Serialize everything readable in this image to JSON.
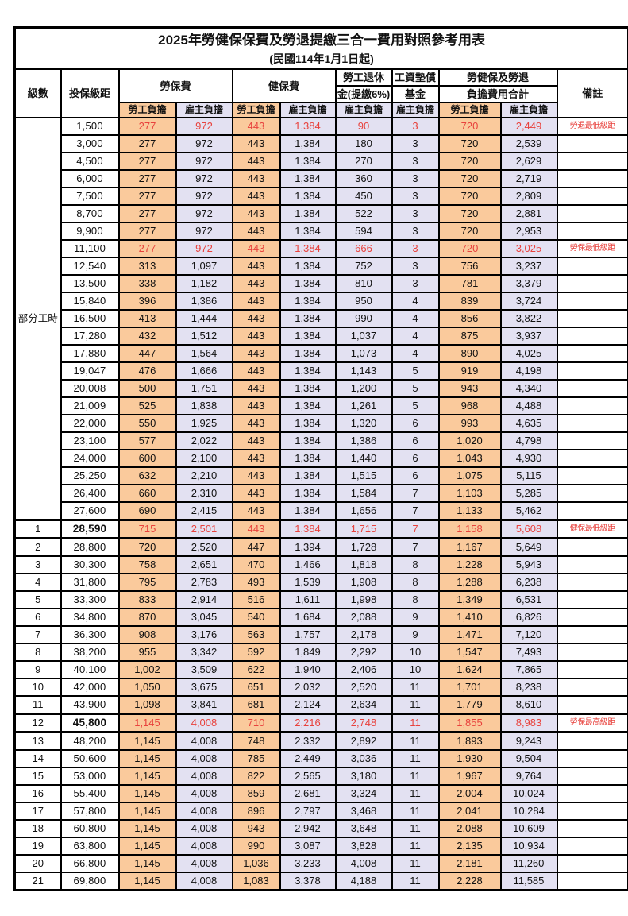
{
  "title": "2025年勞健保保費及勞退提繳三合一費用對照參考用表",
  "subtitle": "(民國114年1月1日起)",
  "colors": {
    "employee_column_bg": "#FACA9C",
    "employer_column_bg": "#E3E1F2",
    "highlight_text": "#E8423D",
    "border": "#000000"
  },
  "header": {
    "level": "級數",
    "salary": "投保級距",
    "labor": "勞保費",
    "health": "健保費",
    "pension_line1": "勞工退休",
    "pension_line2": "金(提繳6%)",
    "wage_fund_line1": "工資墊償",
    "wage_fund_line2": "基金",
    "total_line1": "勞健保及勞退",
    "total_line2": "負擔費用合計",
    "remark": "備註",
    "employee": "勞工負擔",
    "employer": "雇主負擔"
  },
  "part_time_label": "部分工時",
  "part_time_rowspan": 23,
  "rows": [
    {
      "lv": null,
      "salary": "1,500",
      "v": [
        "277",
        "972",
        "443",
        "1,384",
        "90",
        "3",
        "720",
        "2,449"
      ],
      "note": "勞退最低級距",
      "red": true,
      "thick": false
    },
    {
      "lv": null,
      "salary": "3,000",
      "v": [
        "277",
        "972",
        "443",
        "1,384",
        "180",
        "3",
        "720",
        "2,539"
      ],
      "note": "",
      "red": false,
      "thick": false
    },
    {
      "lv": null,
      "salary": "4,500",
      "v": [
        "277",
        "972",
        "443",
        "1,384",
        "270",
        "3",
        "720",
        "2,629"
      ],
      "note": "",
      "red": false,
      "thick": false
    },
    {
      "lv": null,
      "salary": "6,000",
      "v": [
        "277",
        "972",
        "443",
        "1,384",
        "360",
        "3",
        "720",
        "2,719"
      ],
      "note": "",
      "red": false,
      "thick": false
    },
    {
      "lv": null,
      "salary": "7,500",
      "v": [
        "277",
        "972",
        "443",
        "1,384",
        "450",
        "3",
        "720",
        "2,809"
      ],
      "note": "",
      "red": false,
      "thick": false
    },
    {
      "lv": null,
      "salary": "8,700",
      "v": [
        "277",
        "972",
        "443",
        "1,384",
        "522",
        "3",
        "720",
        "2,881"
      ],
      "note": "",
      "red": false,
      "thick": false
    },
    {
      "lv": null,
      "salary": "9,900",
      "v": [
        "277",
        "972",
        "443",
        "1,384",
        "594",
        "3",
        "720",
        "2,953"
      ],
      "note": "",
      "red": false,
      "thick": false
    },
    {
      "lv": null,
      "salary": "11,100",
      "v": [
        "277",
        "972",
        "443",
        "1,384",
        "666",
        "3",
        "720",
        "3,025"
      ],
      "note": "勞保最低級距",
      "red": true,
      "thick": false
    },
    {
      "lv": null,
      "salary": "12,540",
      "v": [
        "313",
        "1,097",
        "443",
        "1,384",
        "752",
        "3",
        "756",
        "3,237"
      ],
      "note": "",
      "red": false,
      "thick": false
    },
    {
      "lv": null,
      "salary": "13,500",
      "v": [
        "338",
        "1,182",
        "443",
        "1,384",
        "810",
        "3",
        "781",
        "3,379"
      ],
      "note": "",
      "red": false,
      "thick": false
    },
    {
      "lv": null,
      "salary": "15,840",
      "v": [
        "396",
        "1,386",
        "443",
        "1,384",
        "950",
        "4",
        "839",
        "3,724"
      ],
      "note": "",
      "red": false,
      "thick": false
    },
    {
      "lv": null,
      "salary": "16,500",
      "v": [
        "413",
        "1,444",
        "443",
        "1,384",
        "990",
        "4",
        "856",
        "3,822"
      ],
      "note": "",
      "red": false,
      "thick": false
    },
    {
      "lv": null,
      "salary": "17,280",
      "v": [
        "432",
        "1,512",
        "443",
        "1,384",
        "1,037",
        "4",
        "875",
        "3,937"
      ],
      "note": "",
      "red": false,
      "thick": false
    },
    {
      "lv": null,
      "salary": "17,880",
      "v": [
        "447",
        "1,564",
        "443",
        "1,384",
        "1,073",
        "4",
        "890",
        "4,025"
      ],
      "note": "",
      "red": false,
      "thick": false
    },
    {
      "lv": null,
      "salary": "19,047",
      "v": [
        "476",
        "1,666",
        "443",
        "1,384",
        "1,143",
        "5",
        "919",
        "4,198"
      ],
      "note": "",
      "red": false,
      "thick": false
    },
    {
      "lv": null,
      "salary": "20,008",
      "v": [
        "500",
        "1,751",
        "443",
        "1,384",
        "1,200",
        "5",
        "943",
        "4,340"
      ],
      "note": "",
      "red": false,
      "thick": false
    },
    {
      "lv": null,
      "salary": "21,009",
      "v": [
        "525",
        "1,838",
        "443",
        "1,384",
        "1,261",
        "5",
        "968",
        "4,488"
      ],
      "note": "",
      "red": false,
      "thick": false
    },
    {
      "lv": null,
      "salary": "22,000",
      "v": [
        "550",
        "1,925",
        "443",
        "1,384",
        "1,320",
        "6",
        "993",
        "4,635"
      ],
      "note": "",
      "red": false,
      "thick": false
    },
    {
      "lv": null,
      "salary": "23,100",
      "v": [
        "577",
        "2,022",
        "443",
        "1,384",
        "1,386",
        "6",
        "1,020",
        "4,798"
      ],
      "note": "",
      "red": false,
      "thick": false
    },
    {
      "lv": null,
      "salary": "24,000",
      "v": [
        "600",
        "2,100",
        "443",
        "1,384",
        "1,440",
        "6",
        "1,043",
        "4,930"
      ],
      "note": "",
      "red": false,
      "thick": false
    },
    {
      "lv": null,
      "salary": "25,250",
      "v": [
        "632",
        "2,210",
        "443",
        "1,384",
        "1,515",
        "6",
        "1,075",
        "5,115"
      ],
      "note": "",
      "red": false,
      "thick": false
    },
    {
      "lv": null,
      "salary": "26,400",
      "v": [
        "660",
        "2,310",
        "443",
        "1,384",
        "1,584",
        "7",
        "1,103",
        "5,285"
      ],
      "note": "",
      "red": false,
      "thick": false
    },
    {
      "lv": null,
      "salary": "27,600",
      "v": [
        "690",
        "2,415",
        "443",
        "1,384",
        "1,656",
        "7",
        "1,133",
        "5,462"
      ],
      "note": "",
      "red": false,
      "thick": false
    },
    {
      "lv": "1",
      "salary": "28,590",
      "v": [
        "715",
        "2,501",
        "443",
        "1,384",
        "1,715",
        "7",
        "1,158",
        "5,608"
      ],
      "note": "健保最低級距",
      "red": true,
      "thick": true
    },
    {
      "lv": "2",
      "salary": "28,800",
      "v": [
        "720",
        "2,520",
        "447",
        "1,394",
        "1,728",
        "7",
        "1,167",
        "5,649"
      ],
      "note": "",
      "red": false,
      "thick": false
    },
    {
      "lv": "3",
      "salary": "30,300",
      "v": [
        "758",
        "2,651",
        "470",
        "1,466",
        "1,818",
        "8",
        "1,228",
        "5,943"
      ],
      "note": "",
      "red": false,
      "thick": false
    },
    {
      "lv": "4",
      "salary": "31,800",
      "v": [
        "795",
        "2,783",
        "493",
        "1,539",
        "1,908",
        "8",
        "1,288",
        "6,238"
      ],
      "note": "",
      "red": false,
      "thick": false
    },
    {
      "lv": "5",
      "salary": "33,300",
      "v": [
        "833",
        "2,914",
        "516",
        "1,611",
        "1,998",
        "8",
        "1,349",
        "6,531"
      ],
      "note": "",
      "red": false,
      "thick": false
    },
    {
      "lv": "6",
      "salary": "34,800",
      "v": [
        "870",
        "3,045",
        "540",
        "1,684",
        "2,088",
        "9",
        "1,410",
        "6,826"
      ],
      "note": "",
      "red": false,
      "thick": false
    },
    {
      "lv": "7",
      "salary": "36,300",
      "v": [
        "908",
        "3,176",
        "563",
        "1,757",
        "2,178",
        "9",
        "1,471",
        "7,120"
      ],
      "note": "",
      "red": false,
      "thick": false
    },
    {
      "lv": "8",
      "salary": "38,200",
      "v": [
        "955",
        "3,342",
        "592",
        "1,849",
        "2,292",
        "10",
        "1,547",
        "7,493"
      ],
      "note": "",
      "red": false,
      "thick": false
    },
    {
      "lv": "9",
      "salary": "40,100",
      "v": [
        "1,002",
        "3,509",
        "622",
        "1,940",
        "2,406",
        "10",
        "1,624",
        "7,865"
      ],
      "note": "",
      "red": false,
      "thick": false
    },
    {
      "lv": "10",
      "salary": "42,000",
      "v": [
        "1,050",
        "3,675",
        "651",
        "2,032",
        "2,520",
        "11",
        "1,701",
        "8,238"
      ],
      "note": "",
      "red": false,
      "thick": false
    },
    {
      "lv": "11",
      "salary": "43,900",
      "v": [
        "1,098",
        "3,841",
        "681",
        "2,124",
        "2,634",
        "11",
        "1,779",
        "8,610"
      ],
      "note": "",
      "red": false,
      "thick": false
    },
    {
      "lv": "12",
      "salary": "45,800",
      "v": [
        "1,145",
        "4,008",
        "710",
        "2,216",
        "2,748",
        "11",
        "1,855",
        "8,983"
      ],
      "note": "勞保最高級距",
      "red": true,
      "thick": true
    },
    {
      "lv": "13",
      "salary": "48,200",
      "v": [
        "1,145",
        "4,008",
        "748",
        "2,332",
        "2,892",
        "11",
        "1,893",
        "9,243"
      ],
      "note": "",
      "red": false,
      "thick": false
    },
    {
      "lv": "14",
      "salary": "50,600",
      "v": [
        "1,145",
        "4,008",
        "785",
        "2,449",
        "3,036",
        "11",
        "1,930",
        "9,504"
      ],
      "note": "",
      "red": false,
      "thick": false
    },
    {
      "lv": "15",
      "salary": "53,000",
      "v": [
        "1,145",
        "4,008",
        "822",
        "2,565",
        "3,180",
        "11",
        "1,967",
        "9,764"
      ],
      "note": "",
      "red": false,
      "thick": false
    },
    {
      "lv": "16",
      "salary": "55,400",
      "v": [
        "1,145",
        "4,008",
        "859",
        "2,681",
        "3,324",
        "11",
        "2,004",
        "10,024"
      ],
      "note": "",
      "red": false,
      "thick": false
    },
    {
      "lv": "17",
      "salary": "57,800",
      "v": [
        "1,145",
        "4,008",
        "896",
        "2,797",
        "3,468",
        "11",
        "2,041",
        "10,284"
      ],
      "note": "",
      "red": false,
      "thick": false
    },
    {
      "lv": "18",
      "salary": "60,800",
      "v": [
        "1,145",
        "4,008",
        "943",
        "2,942",
        "3,648",
        "11",
        "2,088",
        "10,609"
      ],
      "note": "",
      "red": false,
      "thick": false
    },
    {
      "lv": "19",
      "salary": "63,800",
      "v": [
        "1,145",
        "4,008",
        "990",
        "3,087",
        "3,828",
        "11",
        "2,135",
        "10,934"
      ],
      "note": "",
      "red": false,
      "thick": false
    },
    {
      "lv": "20",
      "salary": "66,800",
      "v": [
        "1,145",
        "4,008",
        "1,036",
        "3,233",
        "4,008",
        "11",
        "2,181",
        "11,260"
      ],
      "note": "",
      "red": false,
      "thick": false
    },
    {
      "lv": "21",
      "salary": "69,800",
      "v": [
        "1,145",
        "4,008",
        "1,083",
        "3,378",
        "4,188",
        "11",
        "2,228",
        "11,585"
      ],
      "note": "",
      "red": false,
      "thick": false
    }
  ]
}
